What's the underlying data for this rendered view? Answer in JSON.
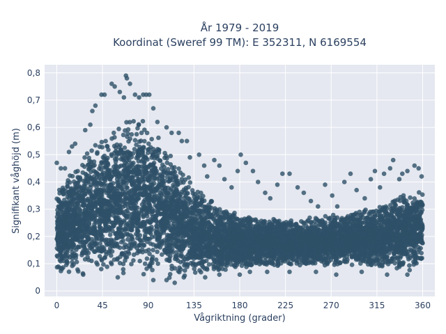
{
  "chart_data": {
    "type": "scatter",
    "title_line1": "År 1979 - 2019",
    "title_line2": "Koordinat (Sweref 99 TM): E 352311, N 6169554",
    "xlabel": "Vågriktning (grader)",
    "ylabel": "Signifikant våghöjd (m)",
    "xlim": [
      -12,
      372
    ],
    "ylim": [
      -0.02,
      0.83
    ],
    "x_ticks": [
      0,
      45,
      90,
      135,
      180,
      225,
      270,
      315,
      360
    ],
    "x_tick_labels": [
      "0",
      "45",
      "90",
      "135",
      "180",
      "225",
      "270",
      "315",
      "360"
    ],
    "y_ticks": [
      0,
      0.1,
      0.2,
      0.3,
      0.4,
      0.5,
      0.6,
      0.7,
      0.8
    ],
    "y_tick_labels": [
      "0",
      "0,1",
      "0,2",
      "0,3",
      "0,4",
      "0,5",
      "0,6",
      "0,7",
      "0,8"
    ],
    "grid": true,
    "marker_color": "#2e5068",
    "plot_bg": "#e5e8f0",
    "envelope": {
      "x": [
        0,
        10,
        20,
        30,
        40,
        50,
        60,
        70,
        80,
        90,
        100,
        110,
        120,
        130,
        140,
        150,
        160,
        170,
        180,
        190,
        200,
        210,
        220,
        230,
        240,
        250,
        260,
        270,
        280,
        290,
        300,
        310,
        320,
        330,
        340,
        350,
        360
      ],
      "upper": [
        0.38,
        0.42,
        0.47,
        0.52,
        0.55,
        0.58,
        0.62,
        0.65,
        0.66,
        0.63,
        0.58,
        0.52,
        0.46,
        0.42,
        0.38,
        0.35,
        0.32,
        0.3,
        0.28,
        0.28,
        0.27,
        0.27,
        0.26,
        0.26,
        0.27,
        0.27,
        0.28,
        0.28,
        0.28,
        0.29,
        0.3,
        0.31,
        0.32,
        0.34,
        0.36,
        0.37,
        0.38
      ],
      "lower": [
        0.07,
        0.06,
        0.06,
        0.06,
        0.05,
        0.05,
        0.05,
        0.05,
        0.05,
        0.04,
        0.04,
        0.04,
        0.05,
        0.05,
        0.05,
        0.06,
        0.06,
        0.07,
        0.08,
        0.08,
        0.09,
        0.09,
        0.09,
        0.09,
        0.09,
        0.09,
        0.09,
        0.09,
        0.09,
        0.09,
        0.09,
        0.08,
        0.08,
        0.08,
        0.07,
        0.07,
        0.07
      ]
    },
    "outliers": [
      {
        "x": 0,
        "y": 0.47
      },
      {
        "x": 4,
        "y": 0.45
      },
      {
        "x": 8,
        "y": 0.45
      },
      {
        "x": 12,
        "y": 0.51
      },
      {
        "x": 15,
        "y": 0.53
      },
      {
        "x": 18,
        "y": 0.54
      },
      {
        "x": 28,
        "y": 0.59
      },
      {
        "x": 33,
        "y": 0.61
      },
      {
        "x": 35,
        "y": 0.66
      },
      {
        "x": 38,
        "y": 0.68
      },
      {
        "x": 44,
        "y": 0.72
      },
      {
        "x": 47,
        "y": 0.72
      },
      {
        "x": 54,
        "y": 0.76
      },
      {
        "x": 57,
        "y": 0.75
      },
      {
        "x": 62,
        "y": 0.73
      },
      {
        "x": 66,
        "y": 0.71
      },
      {
        "x": 68,
        "y": 0.79
      },
      {
        "x": 69,
        "y": 0.78
      },
      {
        "x": 72,
        "y": 0.76
      },
      {
        "x": 77,
        "y": 0.72
      },
      {
        "x": 81,
        "y": 0.71
      },
      {
        "x": 85,
        "y": 0.72
      },
      {
        "x": 88,
        "y": 0.72
      },
      {
        "x": 91,
        "y": 0.72
      },
      {
        "x": 95,
        "y": 0.67
      },
      {
        "x": 99,
        "y": 0.62
      },
      {
        "x": 108,
        "y": 0.6
      },
      {
        "x": 113,
        "y": 0.58
      },
      {
        "x": 120,
        "y": 0.58
      },
      {
        "x": 123,
        "y": 0.55
      },
      {
        "x": 128,
        "y": 0.55
      },
      {
        "x": 131,
        "y": 0.49
      },
      {
        "x": 140,
        "y": 0.5
      },
      {
        "x": 145,
        "y": 0.46
      },
      {
        "x": 148,
        "y": 0.42
      },
      {
        "x": 155,
        "y": 0.48
      },
      {
        "x": 160,
        "y": 0.46
      },
      {
        "x": 165,
        "y": 0.41
      },
      {
        "x": 172,
        "y": 0.38
      },
      {
        "x": 178,
        "y": 0.44
      },
      {
        "x": 181,
        "y": 0.5
      },
      {
        "x": 186,
        "y": 0.47
      },
      {
        "x": 193,
        "y": 0.44
      },
      {
        "x": 198,
        "y": 0.4
      },
      {
        "x": 205,
        "y": 0.36
      },
      {
        "x": 210,
        "y": 0.34
      },
      {
        "x": 217,
        "y": 0.39
      },
      {
        "x": 222,
        "y": 0.43
      },
      {
        "x": 229,
        "y": 0.43
      },
      {
        "x": 237,
        "y": 0.38
      },
      {
        "x": 243,
        "y": 0.36
      },
      {
        "x": 250,
        "y": 0.33
      },
      {
        "x": 257,
        "y": 0.31
      },
      {
        "x": 264,
        "y": 0.39
      },
      {
        "x": 271,
        "y": 0.35
      },
      {
        "x": 276,
        "y": 0.31
      },
      {
        "x": 283,
        "y": 0.4
      },
      {
        "x": 289,
        "y": 0.43
      },
      {
        "x": 295,
        "y": 0.37
      },
      {
        "x": 303,
        "y": 0.34
      },
      {
        "x": 309,
        "y": 0.41
      },
      {
        "x": 313,
        "y": 0.44
      },
      {
        "x": 318,
        "y": 0.38
      },
      {
        "x": 322,
        "y": 0.43
      },
      {
        "x": 328,
        "y": 0.45
      },
      {
        "x": 331,
        "y": 0.48
      },
      {
        "x": 337,
        "y": 0.41
      },
      {
        "x": 340,
        "y": 0.43
      },
      {
        "x": 345,
        "y": 0.44
      },
      {
        "x": 352,
        "y": 0.46
      },
      {
        "x": 356,
        "y": 0.45
      },
      {
        "x": 359,
        "y": 0.42
      },
      {
        "x": 26,
        "y": 0.06
      },
      {
        "x": 60,
        "y": 0.05
      },
      {
        "x": 95,
        "y": 0.04
      },
      {
        "x": 108,
        "y": 0.04
      },
      {
        "x": 116,
        "y": 0.03
      },
      {
        "x": 125,
        "y": 0.05
      },
      {
        "x": 146,
        "y": 0.05
      },
      {
        "x": 160,
        "y": 0.06
      },
      {
        "x": 180,
        "y": 0.06
      },
      {
        "x": 190,
        "y": 0.07
      },
      {
        "x": 207,
        "y": 0.07
      },
      {
        "x": 229,
        "y": 0.07
      },
      {
        "x": 255,
        "y": 0.07
      },
      {
        "x": 275,
        "y": 0.06
      },
      {
        "x": 300,
        "y": 0.07
      },
      {
        "x": 325,
        "y": 0.06
      },
      {
        "x": 345,
        "y": 0.06
      }
    ]
  }
}
